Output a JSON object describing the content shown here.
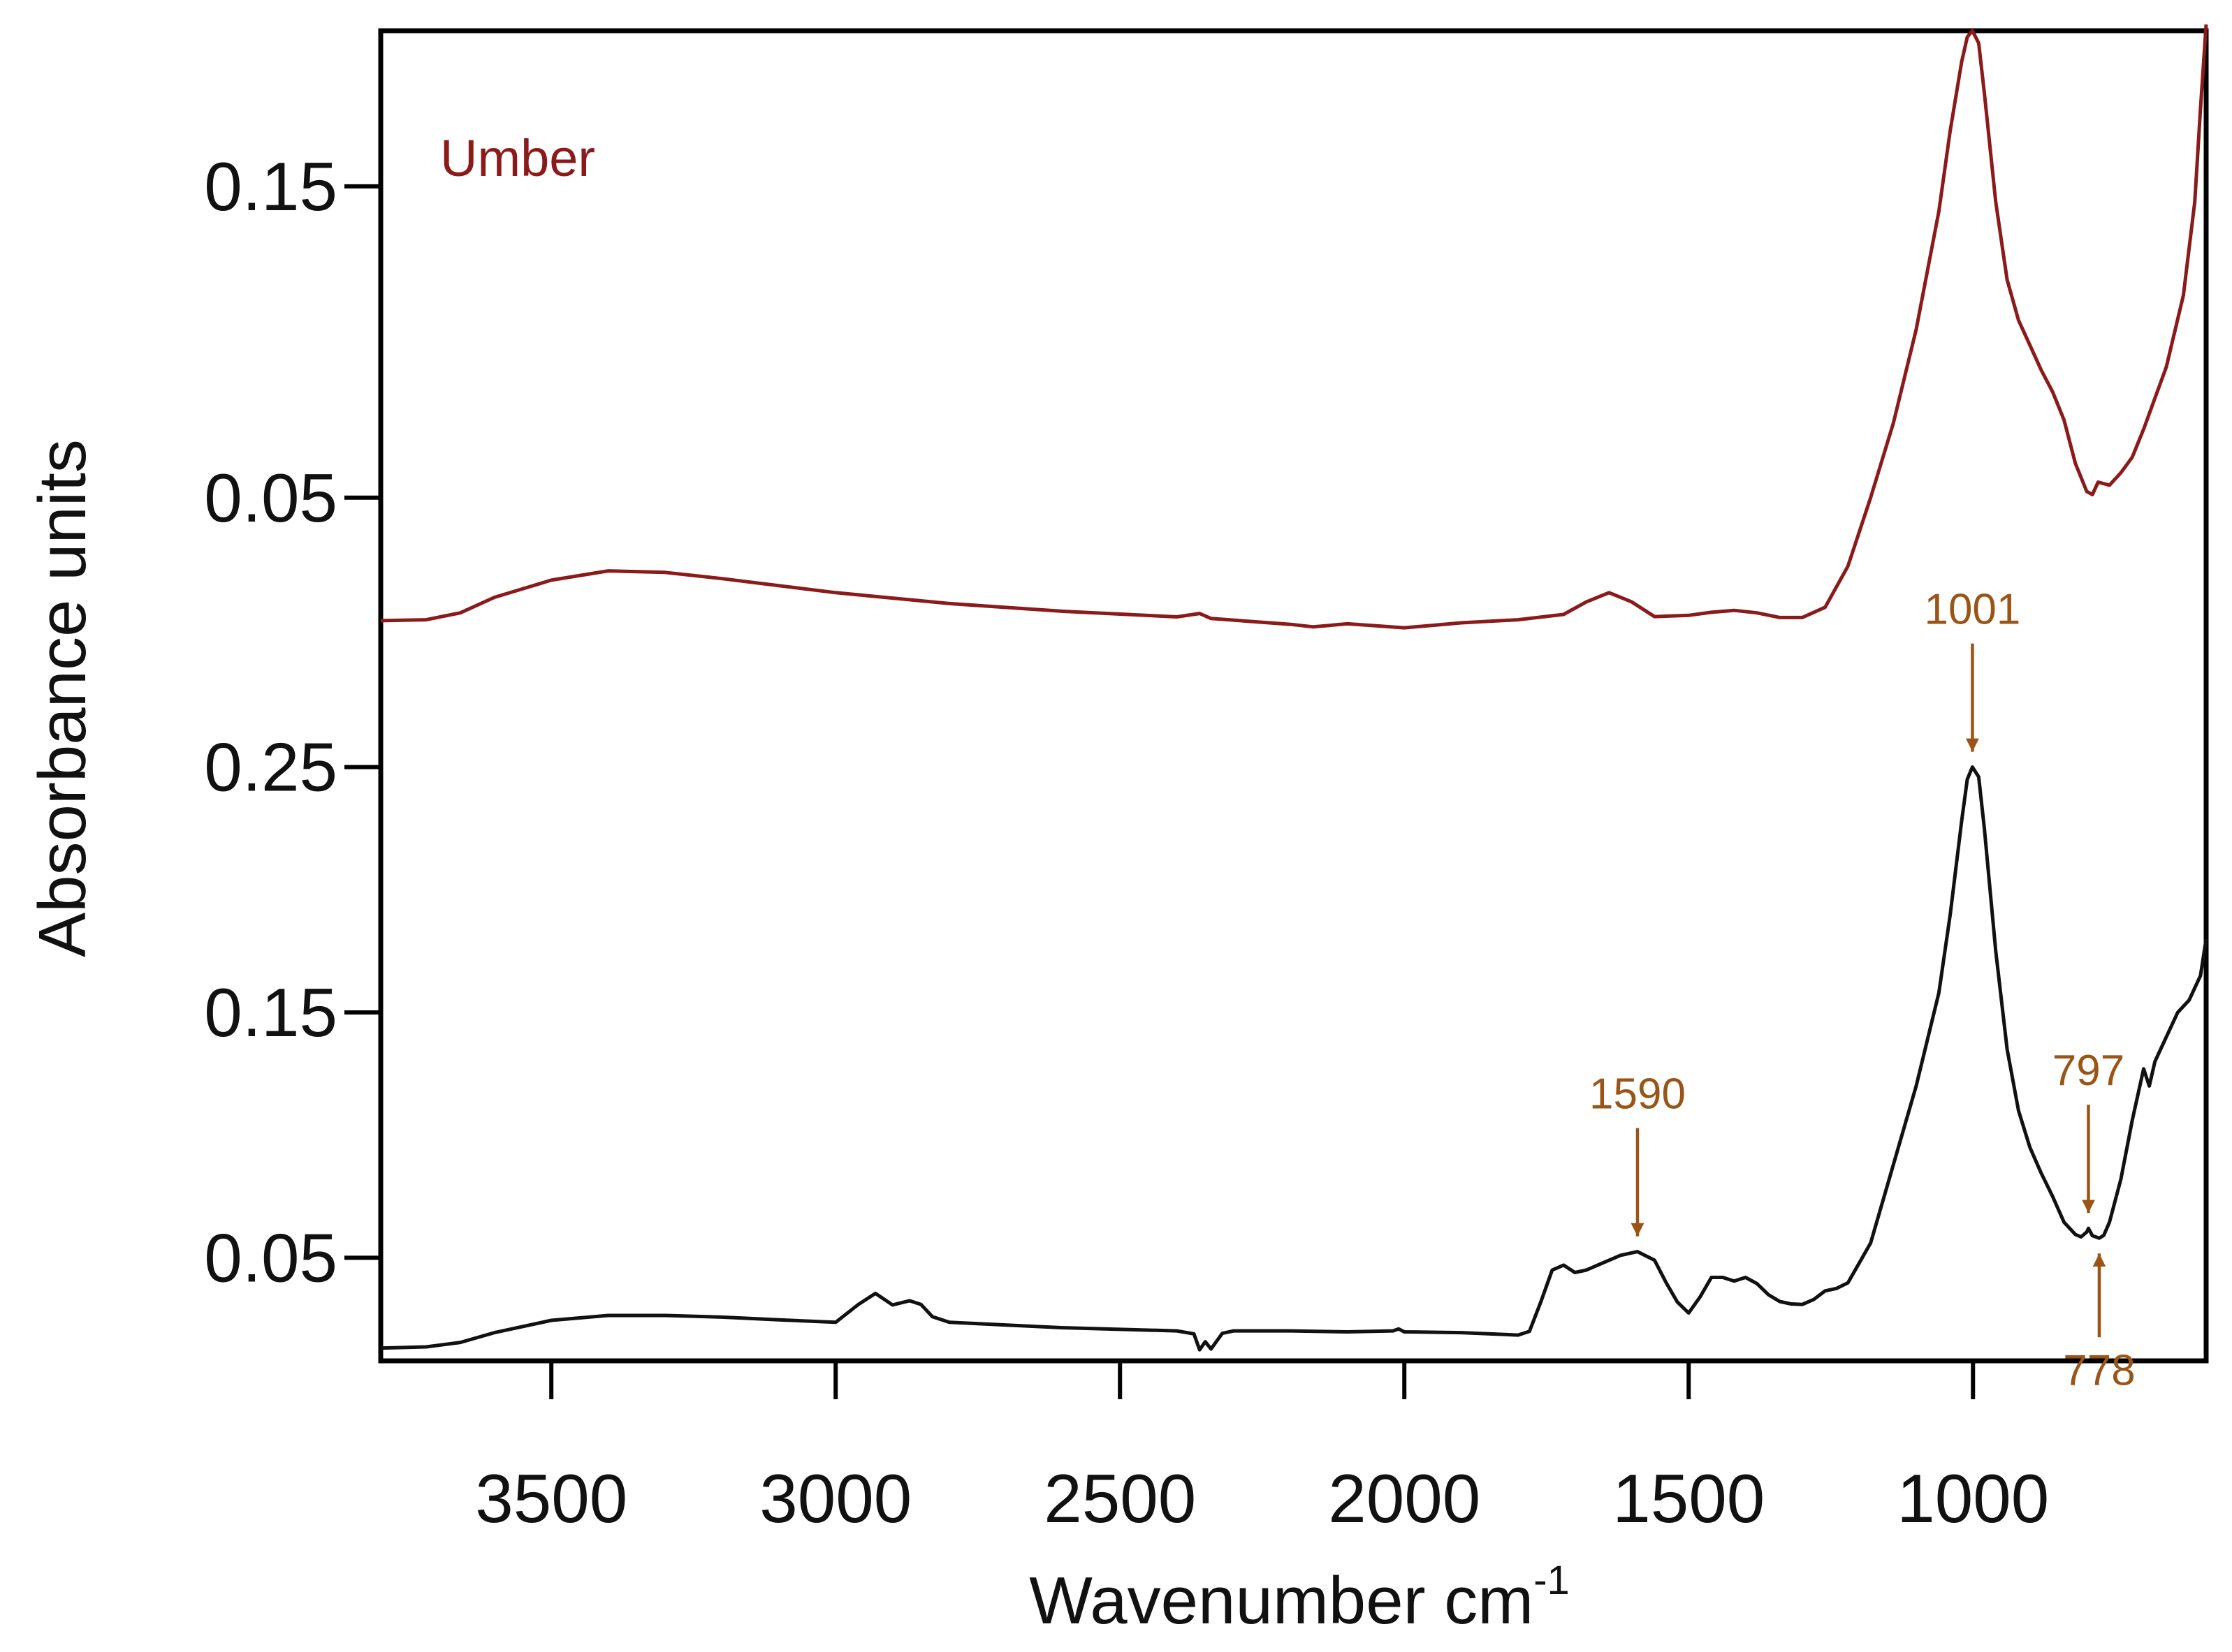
{
  "chart_data": {
    "type": "line",
    "xlabel": "Wavenumber cm",
    "xlabel_superscript": "-1",
    "ylabel": "Absorbance units",
    "x_reversed": true,
    "xlim": [
      3800,
      590
    ],
    "x_ticks": [
      3500,
      3000,
      2500,
      2000,
      1500,
      1000
    ],
    "grid": false,
    "colors": {
      "top": "#8b1a1a",
      "bottom": "#111111",
      "annotation": "#9a5516",
      "axis": "#000000"
    },
    "panels": [
      {
        "id": "top",
        "series_name": "Umber",
        "ylim": [
          -0.005,
          0.2
        ],
        "y_ticks": [
          {
            "value": 0.15,
            "label": "0.15"
          },
          {
            "value": 0.05,
            "label": "0.05"
          }
        ],
        "x": [
          3800,
          3720,
          3660,
          3600,
          3500,
          3400,
          3300,
          3200,
          3000,
          2800,
          2600,
          2400,
          2360,
          2340,
          2200,
          2160,
          2100,
          2000,
          1950,
          1900,
          1800,
          1720,
          1680,
          1640,
          1600,
          1560,
          1500,
          1460,
          1420,
          1380,
          1340,
          1300,
          1260,
          1220,
          1180,
          1140,
          1100,
          1060,
          1040,
          1020,
          1010,
          1001,
          990,
          980,
          960,
          940,
          920,
          900,
          880,
          860,
          840,
          820,
          800,
          790,
          780,
          760,
          740,
          720,
          700,
          660,
          630,
          610,
          600,
          590
        ],
        "y": [
          0.0105,
          0.0108,
          0.013,
          0.018,
          0.0235,
          0.0265,
          0.026,
          0.024,
          0.0195,
          0.016,
          0.0135,
          0.0117,
          0.0128,
          0.0112,
          0.0093,
          0.0085,
          0.0095,
          0.0082,
          0.009,
          0.0098,
          0.0108,
          0.0125,
          0.0165,
          0.0195,
          0.0165,
          0.0118,
          0.0122,
          0.0132,
          0.0138,
          0.013,
          0.0115,
          0.0115,
          0.0148,
          0.028,
          0.05,
          0.074,
          0.104,
          0.142,
          0.168,
          0.19,
          0.198,
          0.2,
          0.196,
          0.18,
          0.145,
          0.12,
          0.107,
          0.099,
          0.091,
          0.084,
          0.075,
          0.061,
          0.052,
          0.051,
          0.055,
          0.054,
          0.058,
          0.063,
          0.072,
          0.092,
          0.115,
          0.145,
          0.175,
          0.202
        ]
      },
      {
        "id": "bottom",
        "ylim": [
          0.008,
          0.29
        ],
        "y_ticks": [
          {
            "value": 0.25,
            "label": "0.25"
          },
          {
            "value": 0.15,
            "label": "0.15"
          },
          {
            "value": 0.05,
            "label": "0.05"
          }
        ],
        "x": [
          3800,
          3720,
          3660,
          3600,
          3500,
          3400,
          3300,
          3200,
          3100,
          3000,
          2960,
          2930,
          2900,
          2870,
          2850,
          2830,
          2800,
          2600,
          2400,
          2370,
          2360,
          2350,
          2340,
          2320,
          2300,
          2200,
          2100,
          2020,
          2010,
          2000,
          1900,
          1800,
          1780,
          1760,
          1740,
          1720,
          1700,
          1680,
          1660,
          1640,
          1620,
          1590,
          1560,
          1540,
          1520,
          1500,
          1480,
          1460,
          1440,
          1420,
          1400,
          1380,
          1360,
          1340,
          1320,
          1300,
          1280,
          1260,
          1240,
          1220,
          1180,
          1140,
          1100,
          1060,
          1040,
          1020,
          1010,
          1001,
          990,
          980,
          960,
          940,
          920,
          900,
          880,
          860,
          840,
          820,
          810,
          800,
          797,
          790,
          778,
          770,
          760,
          740,
          720,
          700,
          690,
          680,
          660,
          640,
          620,
          600,
          590
        ],
        "y": [
          0.0132,
          0.0137,
          0.0155,
          0.0195,
          0.0245,
          0.0265,
          0.0265,
          0.0258,
          0.0247,
          0.0237,
          0.031,
          0.0355,
          0.0308,
          0.0325,
          0.031,
          0.026,
          0.0237,
          0.0215,
          0.0202,
          0.019,
          0.0125,
          0.0158,
          0.0128,
          0.0192,
          0.0202,
          0.0202,
          0.0198,
          0.0202,
          0.021,
          0.0198,
          0.0195,
          0.0185,
          0.02,
          0.032,
          0.045,
          0.047,
          0.044,
          0.045,
          0.047,
          0.049,
          0.051,
          0.0525,
          0.049,
          0.04,
          0.032,
          0.0275,
          0.034,
          0.042,
          0.042,
          0.0405,
          0.042,
          0.0395,
          0.035,
          0.0322,
          0.0312,
          0.031,
          0.033,
          0.0365,
          0.0375,
          0.0398,
          0.056,
          0.088,
          0.12,
          0.158,
          0.19,
          0.228,
          0.245,
          0.25,
          0.246,
          0.225,
          0.175,
          0.135,
          0.11,
          0.095,
          0.0845,
          0.075,
          0.0645,
          0.0595,
          0.0585,
          0.0605,
          0.062,
          0.059,
          0.058,
          0.0592,
          0.0645,
          0.082,
          0.106,
          0.127,
          0.12,
          0.13,
          0.14,
          0.15,
          0.155,
          0.165,
          0.18
        ]
      }
    ],
    "annotations": [
      {
        "label": "1001",
        "x": 1001,
        "direction": "down"
      },
      {
        "label": "1590",
        "x": 1590,
        "direction": "down"
      },
      {
        "label": "797",
        "x": 797,
        "direction": "down"
      },
      {
        "label": "778",
        "x": 778,
        "direction": "up"
      }
    ]
  }
}
